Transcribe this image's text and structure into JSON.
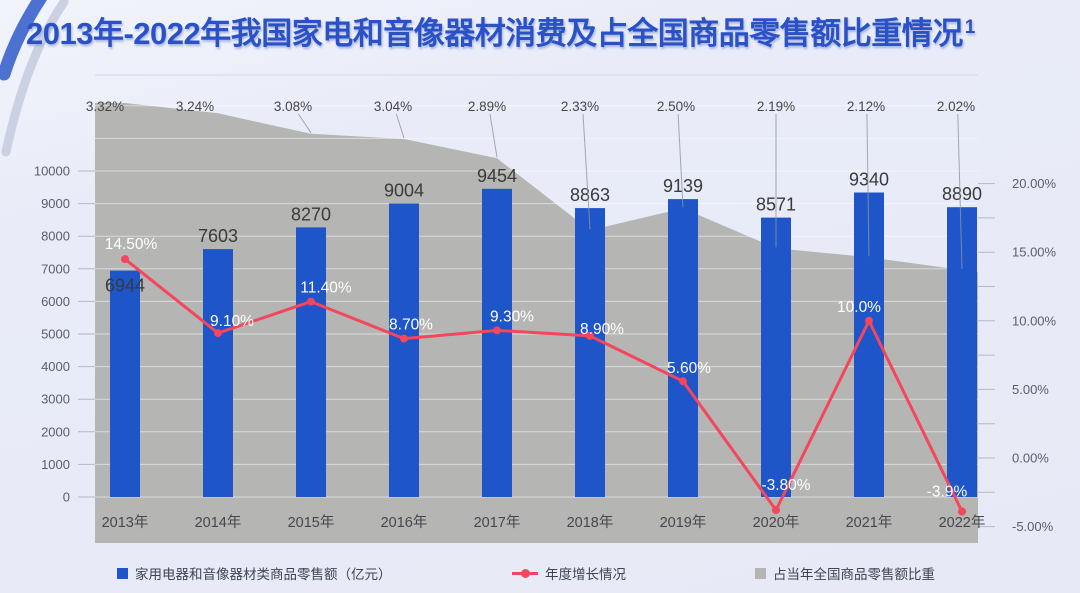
{
  "title": {
    "text": "2013年-2022年我国家电和音像器材消费及占全国商品零售额比重情况",
    "superscript": "1"
  },
  "chart_data": {
    "type": "combo",
    "categories": [
      "2013年",
      "2014年",
      "2015年",
      "2016年",
      "2017年",
      "2018年",
      "2019年",
      "2020年",
      "2021年",
      "2022年"
    ],
    "series": [
      {
        "name": "家用电器和音像器材类商品零售额（亿元）",
        "type": "bar",
        "axis": "left",
        "color": "#1E55C8",
        "values": [
          6944,
          7603,
          8270,
          9004,
          9454,
          8863,
          9139,
          8571,
          9340,
          8890
        ],
        "labels": [
          "6944",
          "7603",
          "8270",
          "9004",
          "9454",
          "8863",
          "9139",
          "8571",
          "9340",
          "8890"
        ]
      },
      {
        "name": "年度增长情况",
        "type": "line",
        "axis": "right",
        "color": "#F4465C",
        "values": [
          14.5,
          9.1,
          11.4,
          8.7,
          9.3,
          8.9,
          5.6,
          -3.8,
          10.0,
          -3.9
        ],
        "labels": [
          "14.50%",
          "9.10%",
          "11.40%",
          "8.70%",
          "9.30%",
          "8.90%",
          "5.60%",
          "-3.80%",
          "10.0%",
          "-3.9%"
        ]
      },
      {
        "name": "占当年全国商品零售额比重",
        "type": "area",
        "axis": "hidden",
        "color": "#B5B5B3",
        "values": [
          3.32,
          3.24,
          3.08,
          3.04,
          2.89,
          2.33,
          2.5,
          2.19,
          2.12,
          2.02
        ],
        "labels": [
          "3.32%",
          "3.24%",
          "3.08%",
          "3.04%",
          "2.89%",
          "2.33%",
          "2.50%",
          "2.19%",
          "2.12%",
          "2.02%"
        ]
      }
    ],
    "left_axis": {
      "min": 0,
      "max": 10000,
      "interval": 1000,
      "tick_labels": [
        "0",
        "1000",
        "2000",
        "3000",
        "4000",
        "5000",
        "6000",
        "7000",
        "8000",
        "9000",
        "10000"
      ]
    },
    "right_axis": {
      "min": -5,
      "max": 20,
      "interval": 5,
      "tick_labels": [
        "-5.00%",
        "0.00%",
        "5.00%",
        "10.00%",
        "15.00%",
        "20.00%"
      ],
      "tick_values": [
        -5,
        0,
        5,
        10,
        15,
        20
      ]
    },
    "legend": {
      "position": "bottom",
      "items": [
        "家用电器和音像器材类商品零售额（亿元）",
        "年度增长情况",
        "占当年全国商品零售额比重"
      ]
    },
    "grid": true
  },
  "colors": {
    "page_background": "#E8EBF7",
    "title_blue": "#2B51C7",
    "bar_blue": "#1E55C8",
    "line_red": "#F4465C",
    "area_gray": "#B5B5B3",
    "bar_label": "#3A3A3A",
    "area_label": "#464646",
    "line_label": "#FFFFFF",
    "axis_text": "#5A5E6B",
    "x_axis_text": "#45474D",
    "gridline": "rgba(255,255,255,0.5)",
    "top_border": "#D4D8E6",
    "tick_mark": "#B3B8C9",
    "legend_text": "#3D4453"
  }
}
